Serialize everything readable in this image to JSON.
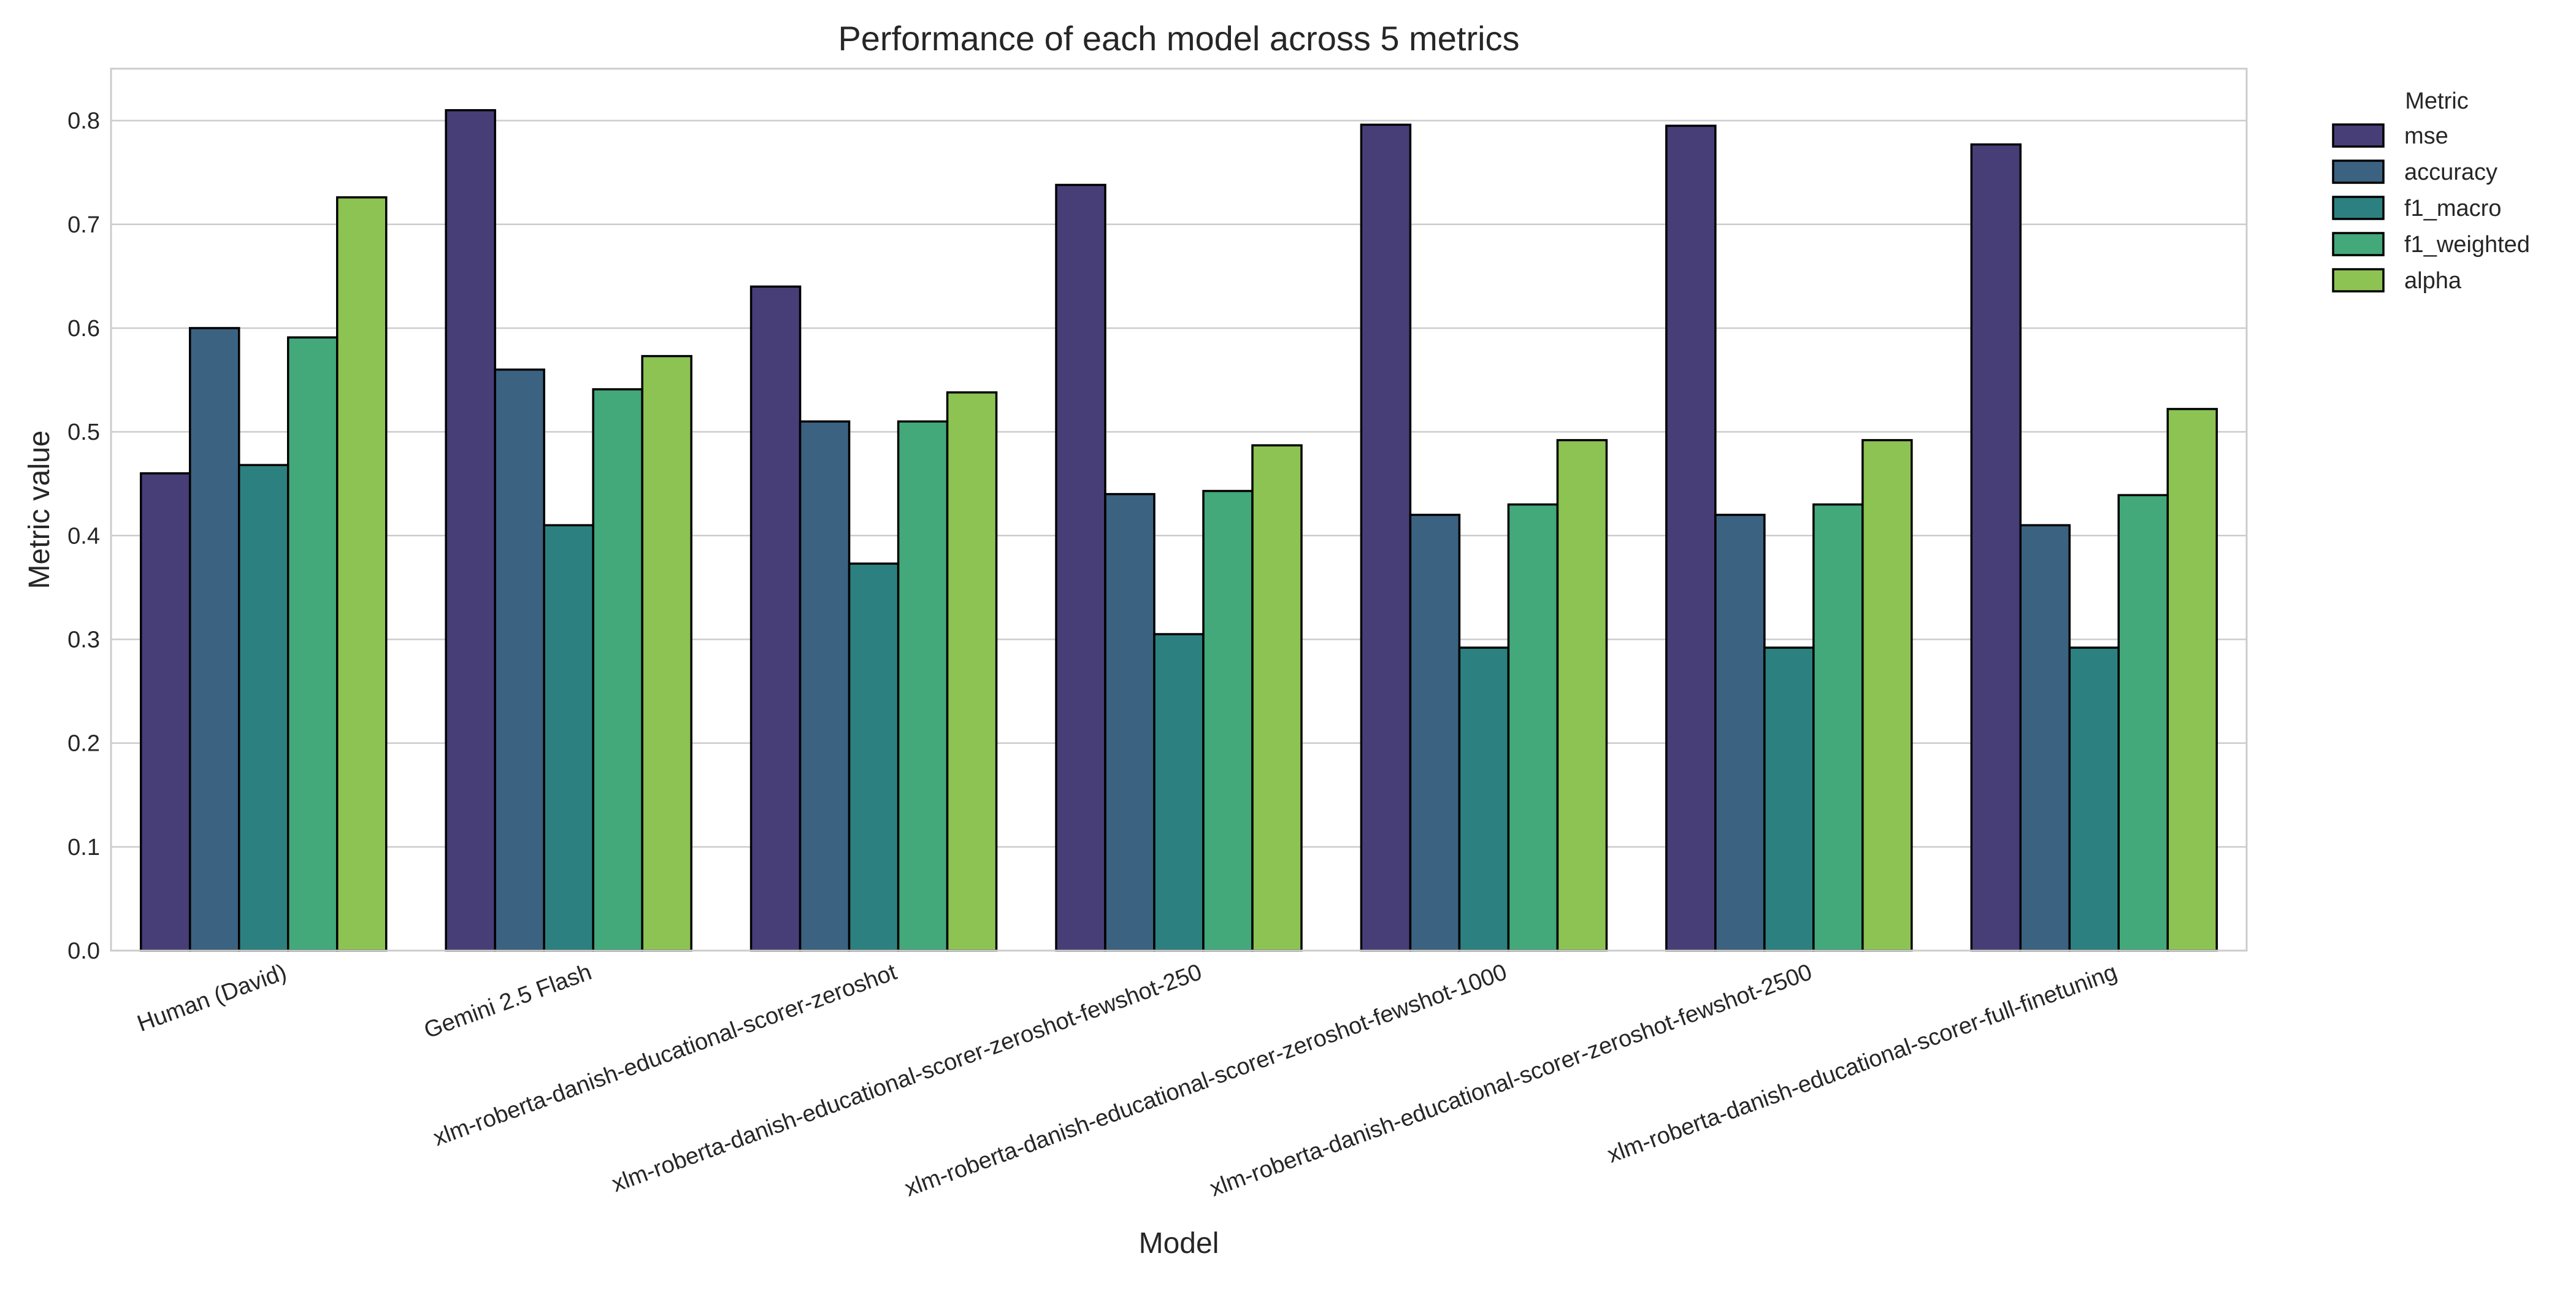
{
  "chart_data": {
    "type": "bar",
    "title": "Performance of each model across 5 metrics",
    "xlabel": "Model",
    "ylabel": "Metric value",
    "ylim": [
      0,
      0.85
    ],
    "yticks": [
      0.0,
      0.1,
      0.2,
      0.3,
      0.4,
      0.5,
      0.6,
      0.7,
      0.8
    ],
    "ytick_labels": [
      "0.0",
      "0.1",
      "0.2",
      "0.3",
      "0.4",
      "0.5",
      "0.6",
      "0.7",
      "0.8"
    ],
    "grid": true,
    "legend_title": "Metric",
    "legend_position": "outside top-right",
    "categories": [
      "Human (David)",
      "Gemini 2.5 Flash",
      "xlm-roberta-danish-educational-scorer-zeroshot",
      "xlm-roberta-danish-educational-scorer-zeroshot-fewshot-250",
      "xlm-roberta-danish-educational-scorer-zeroshot-fewshot-1000",
      "xlm-roberta-danish-educational-scorer-zeroshot-fewshot-2500",
      "xlm-roberta-danish-educational-scorer-full-finetuning"
    ],
    "series": [
      {
        "name": "mse",
        "color": "#473e78",
        "values": [
          0.46,
          0.81,
          0.64,
          0.738,
          0.796,
          0.795,
          0.777
        ]
      },
      {
        "name": "accuracy",
        "color": "#3b6280",
        "values": [
          0.6,
          0.56,
          0.51,
          0.44,
          0.42,
          0.42,
          0.41
        ]
      },
      {
        "name": "f1_macro",
        "color": "#2c8180",
        "values": [
          0.468,
          0.41,
          0.373,
          0.305,
          0.292,
          0.292,
          0.292
        ]
      },
      {
        "name": "f1_weighted",
        "color": "#43a87a",
        "values": [
          0.591,
          0.541,
          0.51,
          0.443,
          0.43,
          0.43,
          0.439
        ]
      },
      {
        "name": "alpha",
        "color": "#8cc352",
        "values": [
          0.726,
          0.573,
          0.538,
          0.487,
          0.492,
          0.492,
          0.522
        ]
      }
    ]
  }
}
